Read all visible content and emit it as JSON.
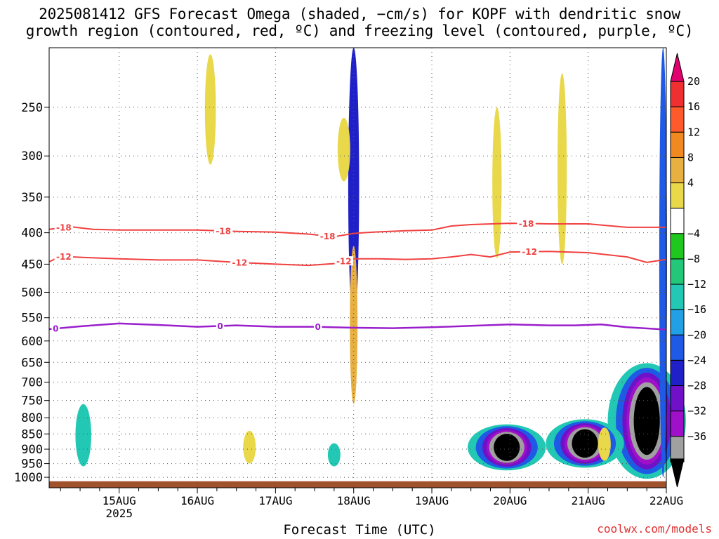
{
  "title_line1": "2025081412 GFS Forecast Omega (shaded, −cm/s) for KOPF with dendritic snow",
  "title_line2": "growth region (contoured, red, ºC) and freezing level (contoured, purple, ºC)",
  "xlabel": "Forecast Time (UTC)",
  "credit": "coolwx.com/models",
  "colors": {
    "dgz_contour": "#f04040",
    "freezing_contour": "#9a1fcc",
    "ground": "#a0522d",
    "grid": "#555555"
  },
  "chart_data": {
    "type": "heatmap",
    "x": {
      "range_hours": [
        -9.5,
        180
      ],
      "ticks": [
        {
          "hour": 12,
          "label": "15AUG",
          "sublabel": "2025"
        },
        {
          "hour": 36,
          "label": "16AUG"
        },
        {
          "hour": 60,
          "label": "17AUG"
        },
        {
          "hour": 84,
          "label": "18AUG"
        },
        {
          "hour": 108,
          "label": "19AUG"
        },
        {
          "hour": 132,
          "label": "20AUG"
        },
        {
          "hour": 156,
          "label": "21AUG"
        },
        {
          "hour": 180,
          "label": "22AUG"
        }
      ],
      "minor_step_hours": 6
    },
    "y": {
      "scale": "log",
      "unit": "hPa",
      "range": [
        200,
        1040
      ],
      "ticks": [
        250,
        300,
        350,
        400,
        450,
        500,
        550,
        600,
        650,
        700,
        750,
        800,
        850,
        900,
        950,
        1000
      ]
    },
    "colorbar": {
      "labels": [
        "20",
        "16",
        "12",
        "8",
        "4",
        "−4",
        "−8",
        "−12",
        "−16",
        "−20",
        "−24",
        "−28",
        "−32",
        "−36"
      ],
      "colors": [
        "#e0006e",
        "#f03030",
        "#ff5a2c",
        "#f08a20",
        "#e8b040",
        "#e8d84a",
        "#ffffff",
        "#1ec81e",
        "#22c878",
        "#22c8b4",
        "#22a0e6",
        "#1e5ae6",
        "#2020c8",
        "#7010c8",
        "#a010c8",
        "#a0a0a0",
        "#000000"
      ]
    },
    "contours": [
      {
        "name": "-18",
        "color": "dgz",
        "label_hours": [
          -5,
          44,
          76,
          137
        ],
        "points": [
          [
            -9.5,
            395
          ],
          [
            -3,
            391
          ],
          [
            4,
            395
          ],
          [
            12,
            396
          ],
          [
            24,
            396
          ],
          [
            36,
            396
          ],
          [
            48,
            398
          ],
          [
            60,
            399
          ],
          [
            70,
            402
          ],
          [
            78,
            406
          ],
          [
            84,
            401
          ],
          [
            90,
            399
          ],
          [
            100,
            397
          ],
          [
            108,
            396
          ],
          [
            114,
            390
          ],
          [
            120,
            388
          ],
          [
            132,
            386
          ],
          [
            144,
            387
          ],
          [
            156,
            387
          ],
          [
            168,
            392
          ],
          [
            180,
            392
          ]
        ]
      },
      {
        "name": "-12",
        "color": "dgz",
        "label_hours": [
          -5,
          49,
          81,
          138
        ],
        "points": [
          [
            -9.5,
            446
          ],
          [
            -6,
            437
          ],
          [
            2,
            439
          ],
          [
            12,
            441
          ],
          [
            24,
            443
          ],
          [
            36,
            443
          ],
          [
            48,
            447
          ],
          [
            60,
            450
          ],
          [
            70,
            452
          ],
          [
            78,
            449
          ],
          [
            84,
            441
          ],
          [
            92,
            441
          ],
          [
            100,
            442
          ],
          [
            108,
            441
          ],
          [
            114,
            438
          ],
          [
            120,
            434
          ],
          [
            126,
            438
          ],
          [
            132,
            430
          ],
          [
            144,
            429
          ],
          [
            156,
            431
          ],
          [
            168,
            438
          ],
          [
            174,
            447
          ],
          [
            180,
            442
          ]
        ]
      },
      {
        "name": "0",
        "color": "freezing",
        "label_hours": [
          -7.5,
          43,
          73
        ],
        "points": [
          [
            -9.5,
            574
          ],
          [
            0,
            568
          ],
          [
            12,
            562
          ],
          [
            24,
            565
          ],
          [
            36,
            569
          ],
          [
            48,
            566
          ],
          [
            60,
            569
          ],
          [
            72,
            569
          ],
          [
            84,
            571
          ],
          [
            96,
            572
          ],
          [
            108,
            570
          ],
          [
            120,
            567
          ],
          [
            132,
            564
          ],
          [
            144,
            566
          ],
          [
            152,
            566
          ],
          [
            160,
            564
          ],
          [
            168,
            570
          ],
          [
            180,
            575
          ]
        ]
      }
    ],
    "shaded_regions": [
      {
        "hour": 174,
        "p_top": 655,
        "p_bottom": 975,
        "width_hours": 5,
        "value": -36
      },
      {
        "hour": 155,
        "p_top": 800,
        "p_bottom": 945,
        "width_hours": 5,
        "value": -36
      },
      {
        "hour": 131,
        "p_top": 815,
        "p_bottom": 955,
        "width_hours": 5,
        "value": -36
      },
      {
        "hour": 84,
        "p_top": 200,
        "p_bottom": 560,
        "width_hours": 2.5,
        "value": -20
      },
      {
        "hour": 179,
        "p_top": 200,
        "p_bottom": 1000,
        "width_hours": 1.5,
        "value": -16
      },
      {
        "hour": 1,
        "p_top": 760,
        "p_bottom": 960,
        "width_hours": 4,
        "value": -8
      },
      {
        "hour": 78,
        "p_top": 880,
        "p_bottom": 960,
        "width_hours": 3,
        "value": -8
      },
      {
        "hour": 40,
        "p_top": 205,
        "p_bottom": 310,
        "width_hours": 2.5,
        "value": 4
      },
      {
        "hour": 81,
        "p_top": 260,
        "p_bottom": 330,
        "width_hours": 3,
        "value": 4
      },
      {
        "hour": 84,
        "p_top": 420,
        "p_bottom": 760,
        "width_hours": 1.5,
        "value": 8
      },
      {
        "hour": 128,
        "p_top": 250,
        "p_bottom": 440,
        "width_hours": 2,
        "value": 4
      },
      {
        "hour": 52,
        "p_top": 840,
        "p_bottom": 950,
        "width_hours": 3,
        "value": 4
      },
      {
        "hour": 148,
        "p_top": 220,
        "p_bottom": 450,
        "width_hours": 2,
        "value": 4
      },
      {
        "hour": 161,
        "p_top": 830,
        "p_bottom": 940,
        "width_hours": 3,
        "value": 4
      }
    ]
  }
}
